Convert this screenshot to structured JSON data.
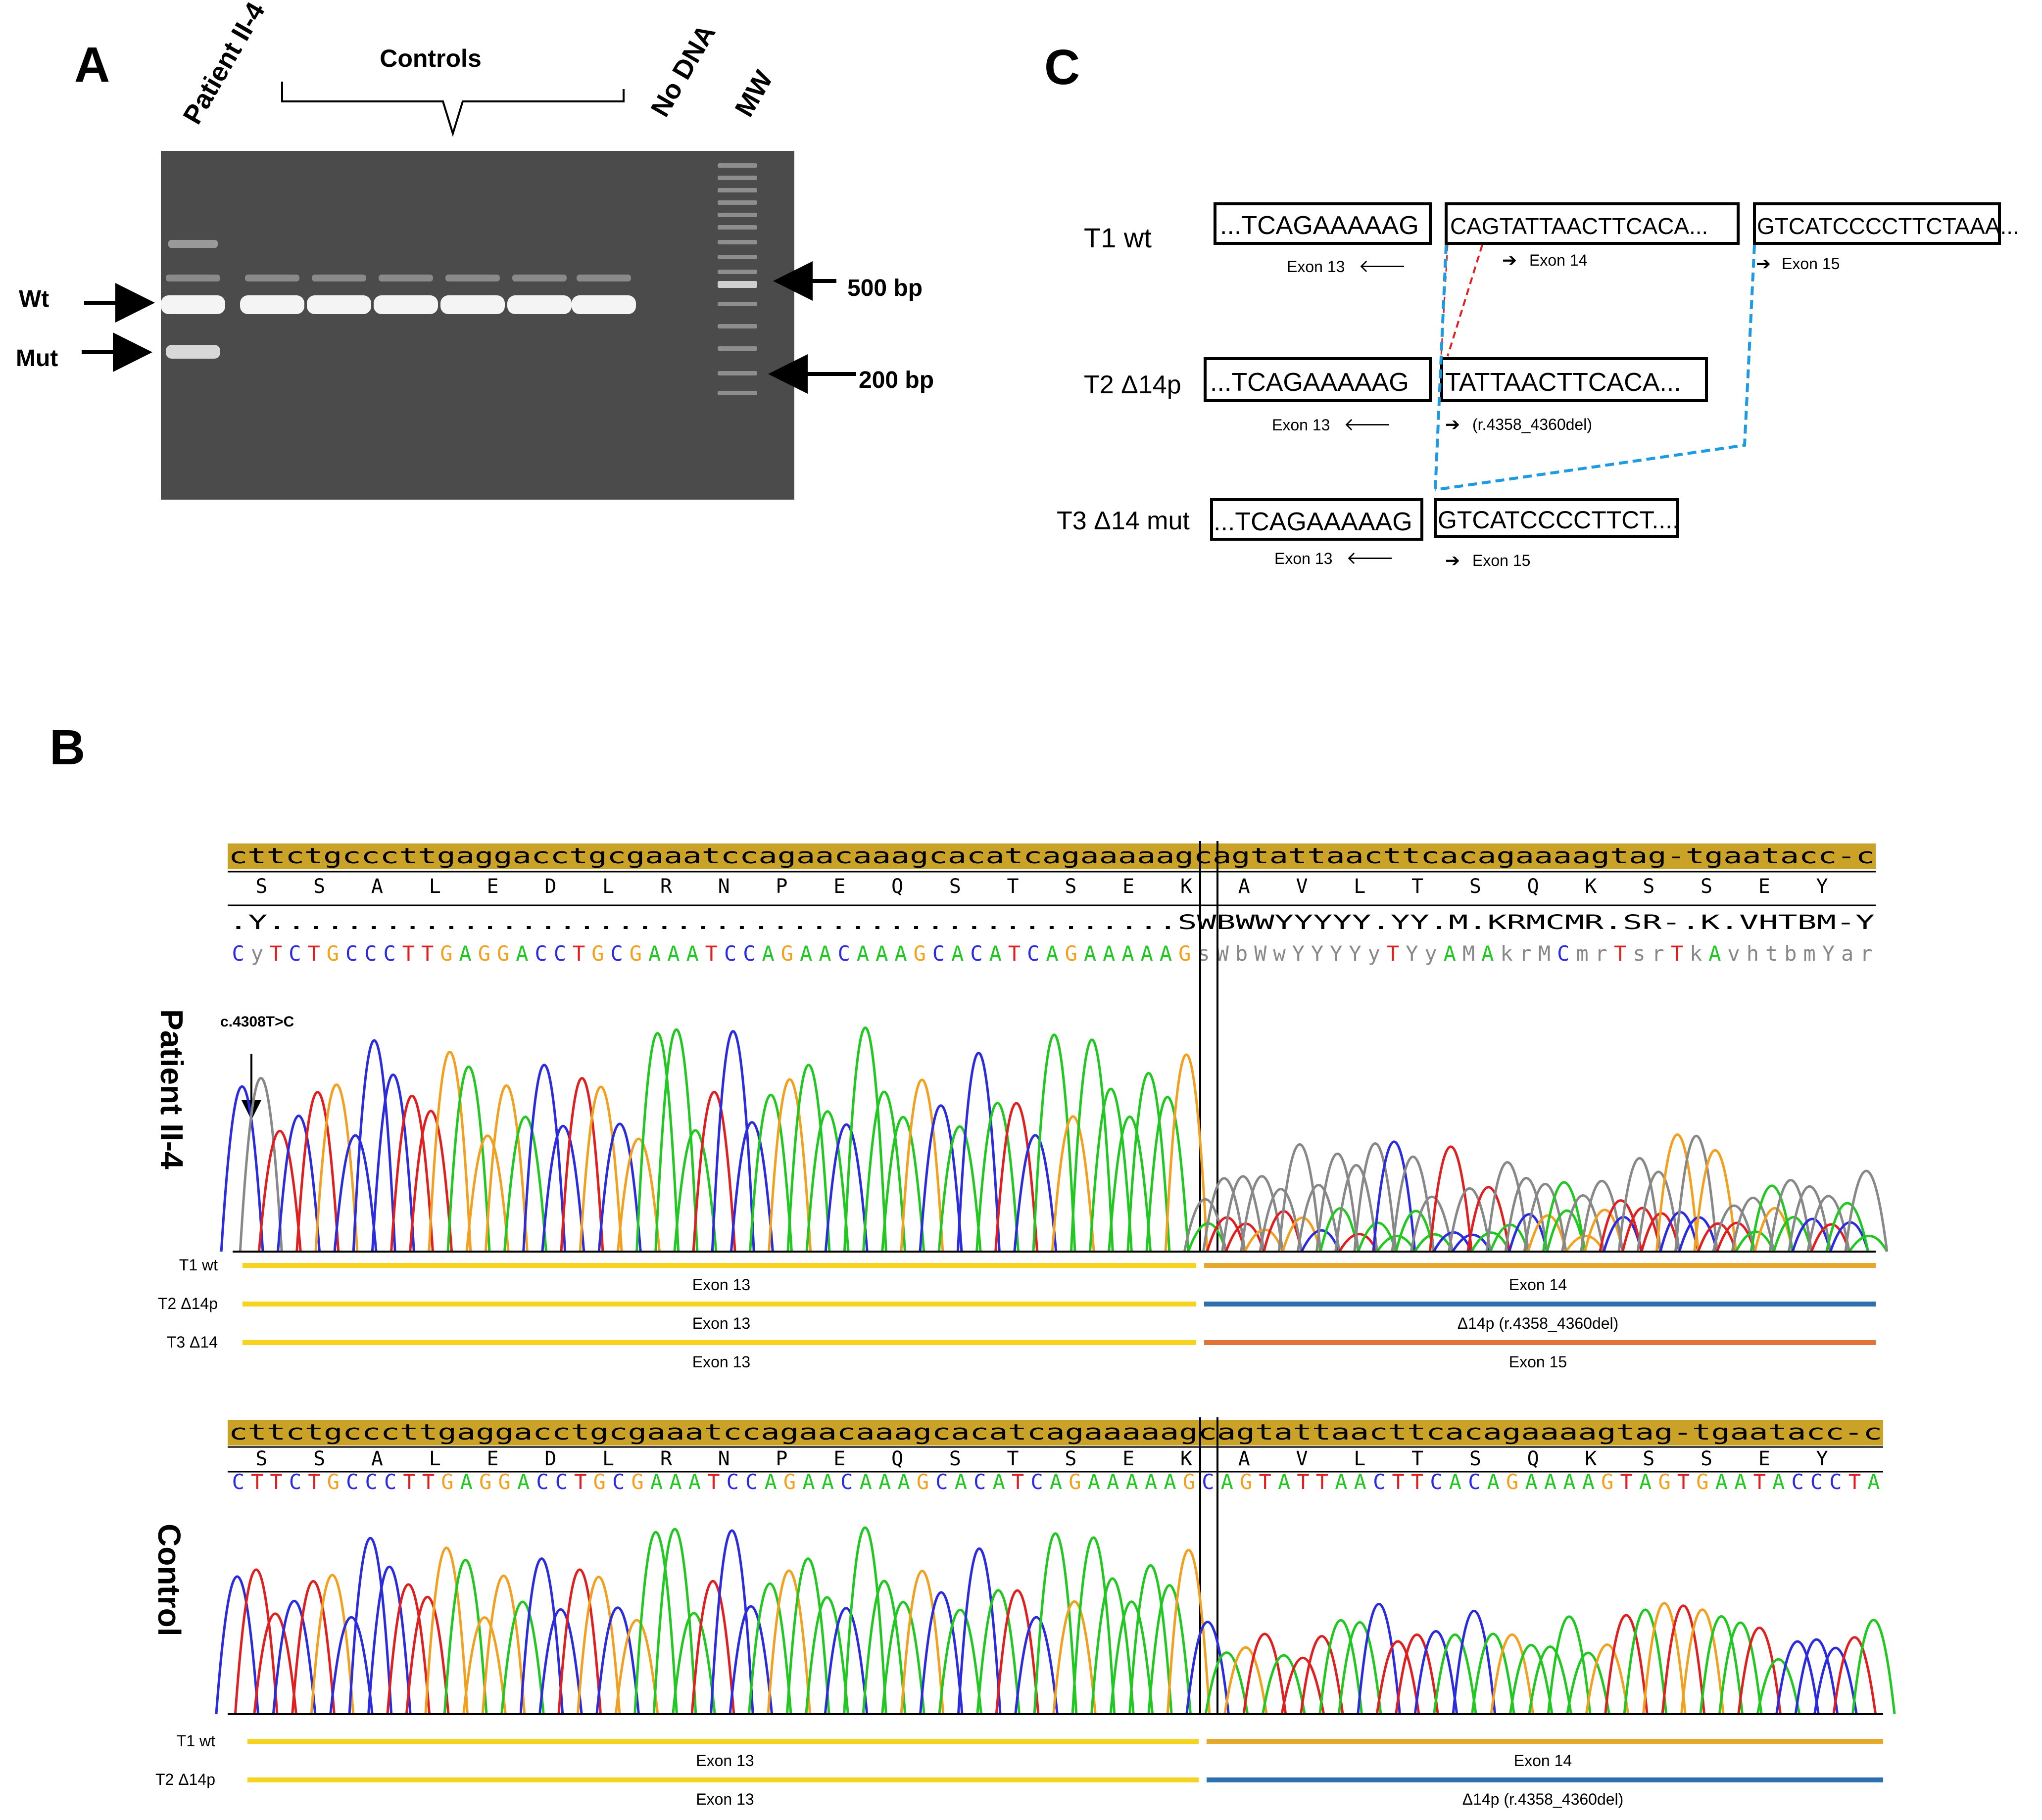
{
  "panels": {
    "A": {
      "letter": "A",
      "lane_labels": [
        "Patient II-4",
        "No DNA",
        "MW"
      ],
      "controls_label": "Controls",
      "wt_label": "Wt",
      "mut_label": "Mut",
      "bp500_label": "500 bp",
      "bp200_label": "200 bp"
    },
    "B": {
      "letter": "B",
      "patient": {
        "label": "Patient II-4",
        "genomic": "cttctgcccttgaggacctgcgaaatccagaacaaagcacatcagaaaaagcagtattaacttcacagaaaagtag-tgaatacc-c",
        "aa": [
          "S",
          "S",
          "A",
          "L",
          "E",
          "D",
          "L",
          "R",
          "N",
          "P",
          "E",
          "Q",
          "S",
          "T",
          "S",
          "E",
          "K",
          "A",
          "V",
          "L",
          "T",
          "S",
          "Q",
          "K",
          "S",
          "S",
          "E",
          "Y"
        ],
        "consensus": ".Y...............................................SWBWWYYYYY.YY.M.KRMCMR.SR-.K.VHTBM-Y",
        "called": "CyTCTGCCCTTGAGGACCTGCGAAATCCAGAACAAAGCACATCAGAAAAAGsWbWwYYYYyTYyAMAkrMCmrTsrTkAvhtbmYar",
        "mutation": "c.4308T>C",
        "tracks": [
          {
            "label": "T1 wt",
            "left": "Exon 13",
            "right": "Exon 14",
            "right_color": "#E3A82C"
          },
          {
            "label": "T2 Δ14p",
            "left": "Exon 13",
            "right": "Δ14p (r.4358_4360del)",
            "right_color": "#2E6FAE"
          },
          {
            "label": "T3 Δ14",
            "left": "Exon 13",
            "right": "Exon 15",
            "right_color": "#E0733A"
          }
        ]
      },
      "control": {
        "label": "Control",
        "genomic": "cttctgcccttgaggacctgcgaaatccagaacaaagcacatcagaaaaagcagtattaacttcacagaaaagtag-tgaatacc-c",
        "aa": [
          "S",
          "S",
          "A",
          "L",
          "E",
          "D",
          "L",
          "R",
          "N",
          "P",
          "E",
          "Q",
          "S",
          "T",
          "S",
          "E",
          "K",
          "A",
          "V",
          "L",
          "T",
          "S",
          "Q",
          "K",
          "S",
          "S",
          "E",
          "Y"
        ],
        "called": "CTTCTGCCCTTGAGGACCTGCGAAATCCAGAACAAAGCACATCAGAAAAAGCAGTATTAACTTCACAGAAAAGTAGTGAATACCCTA",
        "tracks": [
          {
            "label": "T1 wt",
            "left": "Exon 13",
            "right": "Exon 14",
            "right_color": "#E3A82C"
          },
          {
            "label": "T2 Δ14p",
            "left": "Exon 13",
            "right": "Δ14p (r.4358_4360del)",
            "right_color": "#2E6FAE"
          }
        ]
      }
    },
    "C": {
      "letter": "C",
      "rows": [
        {
          "label": "T1 wt",
          "boxes": [
            "...TCAGAAAAAG",
            "CAGTATTAACTTCACA...",
            "GTCATCCCCTTCTAAA..."
          ],
          "notes": [
            "Exon 13",
            "Exon 14",
            "Exon 15"
          ]
        },
        {
          "label": "T2 Δ14p",
          "boxes": [
            "...TCAGAAAAAG",
            "TATTAACTTCACA..."
          ],
          "notes": [
            "Exon 13",
            "(r.4358_4360del)"
          ]
        },
        {
          "label": "T3 Δ14 mut",
          "boxes": [
            "...TCAGAAAAAG",
            "GTCATCCCCTTCT...."
          ],
          "notes": [
            "Exon 13",
            "Exon 15"
          ]
        }
      ]
    }
  },
  "colors": {
    "base_A": "#22C822",
    "base_C": "#2B2BE0",
    "base_G": "#F2A020",
    "base_T": "#E02020",
    "ambiguous": "#888888",
    "exon13": "#F5D31E",
    "header_gold": "#C9A227",
    "splice_red": "#E02020",
    "splice_blue": "#1E9BE0"
  }
}
